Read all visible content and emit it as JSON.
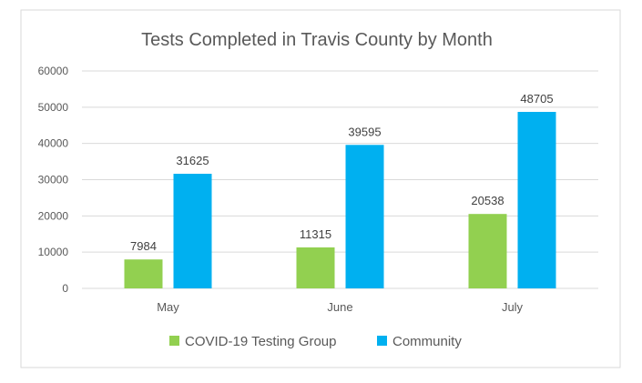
{
  "chart_data": {
    "type": "bar",
    "title": "Tests Completed in Travis County by Month",
    "categories": [
      "May",
      "June",
      "July"
    ],
    "series": [
      {
        "name": "COVID-19 Testing Group",
        "values": [
          7984,
          11315,
          20538
        ],
        "color": "#92d050"
      },
      {
        "name": "Community",
        "values": [
          31625,
          39595,
          48705
        ],
        "color": "#00b0f0"
      }
    ],
    "ylim": [
      0,
      60000
    ],
    "yticks": [
      0,
      10000,
      20000,
      30000,
      40000,
      50000,
      60000
    ],
    "data_labels": true,
    "grid": true,
    "legend_position": "bottom"
  }
}
